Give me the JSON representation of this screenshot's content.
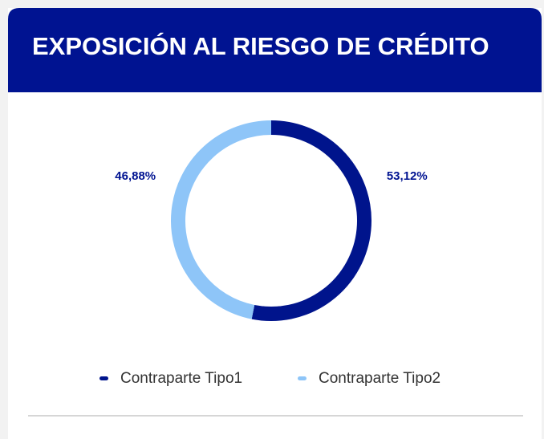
{
  "chart_data": {
    "type": "donut",
    "title": "EXPOSICIÓN AL RIESGO DE CRÉDITO",
    "categories": [
      "Contraparte Tipo1",
      "Contraparte Tipo2"
    ],
    "values": [
      53.12,
      46.88
    ],
    "value_labels": [
      "53,12%",
      "46,88%"
    ],
    "colors": [
      "#00148c",
      "#8ec5f8"
    ],
    "legend": "bottom"
  }
}
